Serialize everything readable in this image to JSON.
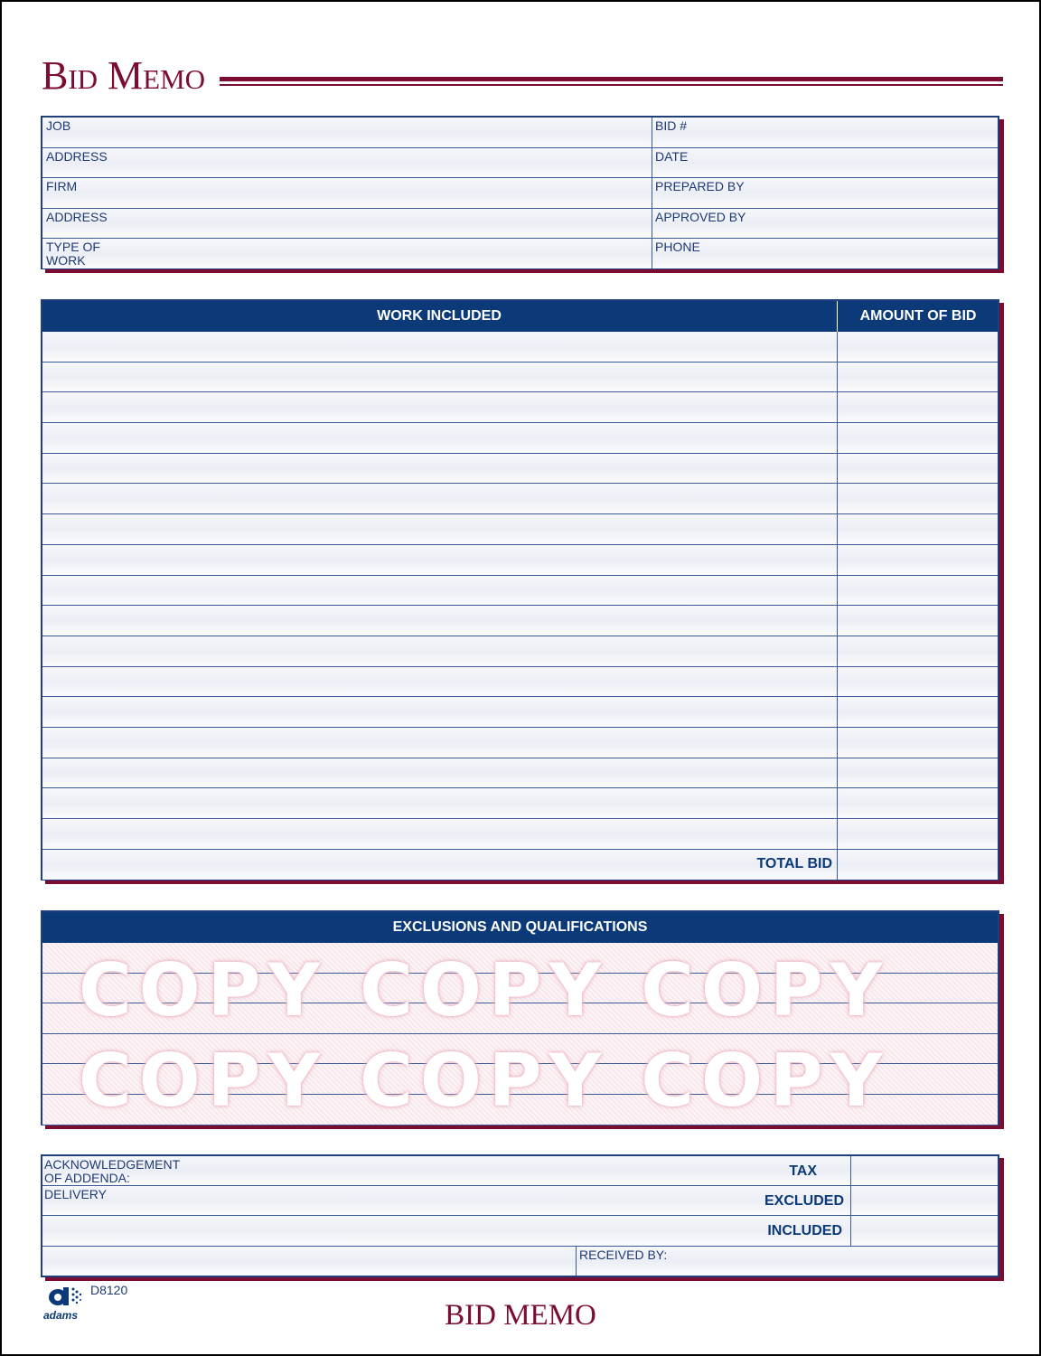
{
  "title": "Bid Memo",
  "header_fields": {
    "left": [
      "JOB",
      "ADDRESS",
      "FIRM",
      "ADDRESS",
      "TYPE OF\nWORK"
    ],
    "right": [
      "BID #",
      "DATE",
      "PREPARED BY",
      "APPROVED BY",
      "PHONE"
    ]
  },
  "work": {
    "col_work": "WORK INCLUDED",
    "col_amount": "AMOUNT OF BID",
    "total_label": "TOTAL BID"
  },
  "exclusions": {
    "title": "EXCLUSIONS AND QUALIFICATIONS",
    "watermark": "COPY COPY COPY"
  },
  "bottom": {
    "ack": "ACKNOWLEDGEMENT\nOF ADDENDA:",
    "delivery": "DELIVERY",
    "tax": "TAX",
    "excluded": "EXCLUDED",
    "included": "INCLUDED",
    "received_by": "RECEIVED BY:"
  },
  "footer": {
    "brand": "adams",
    "form_number": "D8120",
    "title": "BID MEMO"
  },
  "colors": {
    "maroon": "#7b0c32",
    "navy": "#0c3a78"
  }
}
